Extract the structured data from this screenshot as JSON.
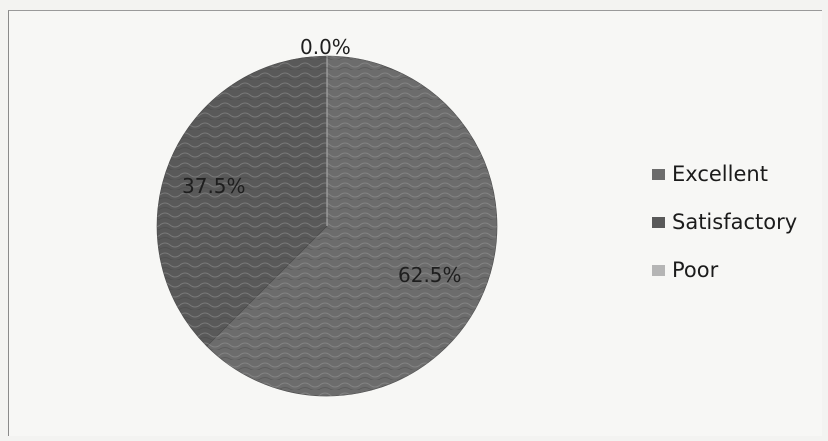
{
  "chart_data": {
    "type": "pie",
    "categories": [
      "Excellent",
      "Satisfactory",
      "Poor"
    ],
    "values": [
      62.5,
      37.5,
      0.0
    ],
    "data_labels": [
      "62.5%",
      "37.5%",
      "0.0%"
    ],
    "colors": [
      "#6c6c6c",
      "#595959",
      "#b5b5b5"
    ],
    "legend_position": "right"
  }
}
